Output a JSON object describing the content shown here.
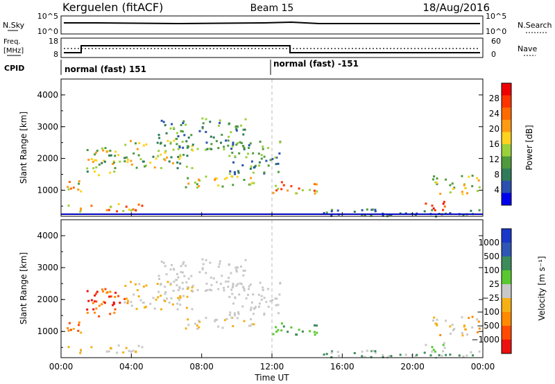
{
  "header": {
    "station": "Kerguelen (fitACF)",
    "beam": "Beam 15",
    "date": "18/Aug/2016"
  },
  "nsky_panel": {
    "left_label": "N.Sky",
    "right_label": "N.Search",
    "left_ticks": [
      "10^5",
      "10^0"
    ],
    "right_ticks": [
      "10^5",
      "10^0"
    ]
  },
  "freq_panel": {
    "left_label_1": "Freq.",
    "left_label_2": "[MHz]",
    "right_label": "Nave",
    "left_ticks": [
      "18",
      "8"
    ],
    "right_ticks": [
      "60",
      "0"
    ]
  },
  "cpid": {
    "label": "CPID",
    "segments": [
      {
        "text": "normal (fast) 151"
      },
      {
        "text": "normal (fast) -151"
      }
    ]
  },
  "chart_data": [
    {
      "type": "heatmap",
      "name": "Power",
      "ylabel": "Slant Range [km]",
      "xlabel": "",
      "xlim": [
        0,
        24
      ],
      "ylim": [
        180,
        4500
      ],
      "yticks": [
        "1000",
        "2000",
        "3000",
        "4000"
      ],
      "colorbar": {
        "label": "Power [dB]",
        "ticks": [
          "4",
          "8",
          "12",
          "16",
          "20",
          "24",
          "28"
        ],
        "colors": [
          "#0000ee",
          "#2a4fb0",
          "#2f7b5a",
          "#4e9a3c",
          "#9ad03c",
          "#ffd21e",
          "#ff9a14",
          "#ff6a00",
          "#ff3300",
          "#ee0000"
        ]
      }
    },
    {
      "type": "heatmap",
      "name": "Velocity",
      "ylabel": "Slant Range [km]",
      "xlabel": "Time UT",
      "xlim": [
        0,
        24
      ],
      "ylim": [
        180,
        4500
      ],
      "yticks": [
        "1000",
        "2000",
        "3000",
        "4000"
      ],
      "xticks": [
        "00:00",
        "04:00",
        "08:00",
        "12:00",
        "16:00",
        "20:00",
        "00:00"
      ],
      "colorbar": {
        "label": "Velocity [m s⁻¹]",
        "ticks": [
          "1000",
          "500",
          "100",
          "25",
          "−25",
          "−100",
          "−500",
          "−1000"
        ],
        "colors": [
          "#1a37c8",
          "#2f56b4",
          "#3b8c5a",
          "#59c830",
          "#c8c8c8",
          "#f5b014",
          "#ff8a00",
          "#ff4a00",
          "#ee1010"
        ]
      }
    }
  ]
}
